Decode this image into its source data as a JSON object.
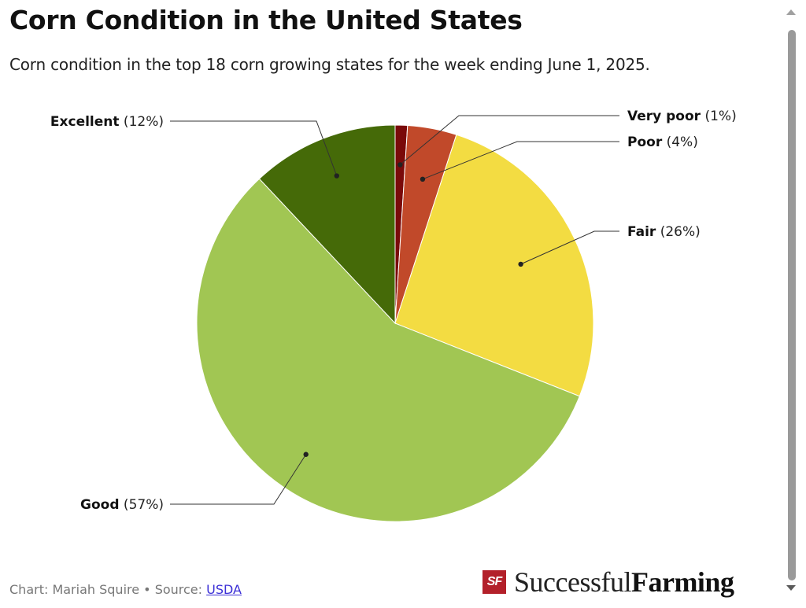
{
  "title": "Corn Condition in the United States",
  "subtitle": "Corn condition in the top 18 corn growing states for the week ending June 1, 2025.",
  "footer": {
    "prefix": "Chart: Mariah Squire • Source: ",
    "source_link": "USDA"
  },
  "logo": {
    "mark": "SF",
    "word1": "Successful",
    "word2": "Farming"
  },
  "chart_data": {
    "type": "pie",
    "title": "Corn Condition in the United States",
    "subtitle": "Corn condition in the top 18 corn growing states for the week ending June 1, 2025.",
    "slices": [
      {
        "label": "Very poor",
        "value": 1,
        "display": "(1%)",
        "color": "#7a0a0a"
      },
      {
        "label": "Poor",
        "value": 4,
        "display": "(4%)",
        "color": "#c1492a"
      },
      {
        "label": "Fair",
        "value": 26,
        "display": "(26%)",
        "color": "#f3dc42"
      },
      {
        "label": "Good",
        "value": 57,
        "display": "(57%)",
        "color": "#a1c653"
      },
      {
        "label": "Excellent",
        "value": 12,
        "display": "(12%)",
        "color": "#456a08"
      }
    ],
    "start_angle": "12 o'clock",
    "direction": "clockwise"
  }
}
